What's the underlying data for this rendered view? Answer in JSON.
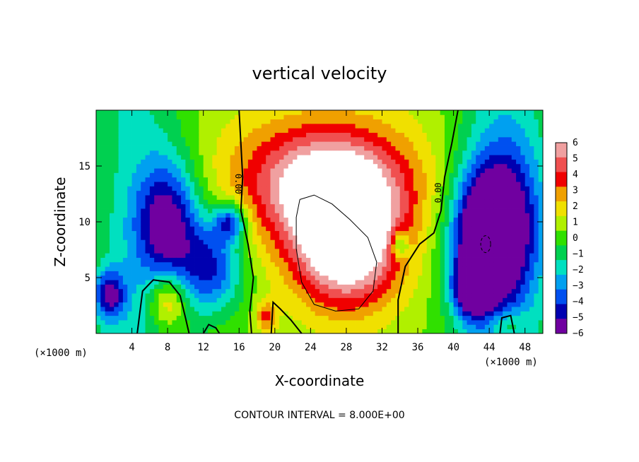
{
  "chart_data": {
    "type": "heatmap",
    "title": "vertical velocity",
    "xlabel": "X-coordinate",
    "ylabel": "Z-coordinate",
    "x_unit": "(×1000 m)",
    "xlim": [
      0,
      50
    ],
    "ylim": [
      0,
      20
    ],
    "x_ticks": [
      4,
      8,
      12,
      16,
      20,
      24,
      28,
      32,
      36,
      40,
      44,
      48
    ],
    "y_ticks": [
      5,
      10,
      15
    ],
    "colorbar": {
      "levels": [
        6,
        5,
        4,
        3,
        2,
        1,
        0,
        -1,
        -2,
        -3,
        -4,
        -5,
        -6
      ],
      "labels": [
        "6",
        "5",
        "4",
        "3",
        "2",
        "1",
        "0",
        "−1",
        "−2",
        "−3",
        "−4",
        "−5",
        "−6"
      ],
      "colors": [
        "#f0a0a0",
        "#f05050",
        "#f00000",
        "#f0a000",
        "#f0e000",
        "#b0f000",
        "#30e000",
        "#00d050",
        "#00e0c0",
        "#00a0f0",
        "#0050f0",
        "#0000b0",
        "#7000a0"
      ]
    },
    "contour_label": "0.00",
    "footer": "CONTOUR INTERVAL = 8.000E+00",
    "field_features": [
      {
        "kind": "updraft",
        "x": 28,
        "z": 8,
        "amp": 8,
        "sx": 4.2,
        "sz": 4.0
      },
      {
        "kind": "updraft",
        "x": 26,
        "z": 13,
        "amp": 5,
        "sx": 6.0,
        "sz": 3.5
      },
      {
        "kind": "updraft",
        "x": 25,
        "z": 15,
        "amp": 2,
        "sx": 8.0,
        "sz": 4.0
      },
      {
        "kind": "updraft",
        "x": 8,
        "z": 3,
        "amp": 4,
        "sx": 1.5,
        "sz": 1.8
      },
      {
        "kind": "updraft",
        "x": 19,
        "z": 1.5,
        "amp": 3,
        "sx": 0.8,
        "sz": 1.0
      },
      {
        "kind": "updraft",
        "x": 46,
        "z": 0.8,
        "amp": 2,
        "sx": 1.5,
        "sz": 1.0
      },
      {
        "kind": "downdraft",
        "x": 8,
        "z": 10,
        "amp": -6,
        "sx": 2.5,
        "sz": 4.0
      },
      {
        "kind": "downdraft",
        "x": 13,
        "z": 6,
        "amp": -5,
        "sx": 2.5,
        "sz": 3.0
      },
      {
        "kind": "downdraft",
        "x": 15,
        "z": 10,
        "amp": -5,
        "sx": 1.2,
        "sz": 1.2
      },
      {
        "kind": "downdraft",
        "x": 1.5,
        "z": 3.5,
        "amp": -5,
        "sx": 1.2,
        "sz": 1.5
      },
      {
        "kind": "downdraft",
        "x": 43,
        "z": 8,
        "amp": -6.5,
        "sx": 2.5,
        "sz": 4.5
      },
      {
        "kind": "downdraft",
        "x": 46,
        "z": 10,
        "amp": -5,
        "sx": 3.0,
        "sz": 5.0
      },
      {
        "kind": "downdraft",
        "x": 42,
        "z": 4,
        "amp": -6,
        "sx": 1.3,
        "sz": 1.5
      },
      {
        "kind": "downdraft",
        "x": 34,
        "z": 8,
        "amp": -4,
        "sx": 0.7,
        "sz": 0.9
      }
    ]
  }
}
